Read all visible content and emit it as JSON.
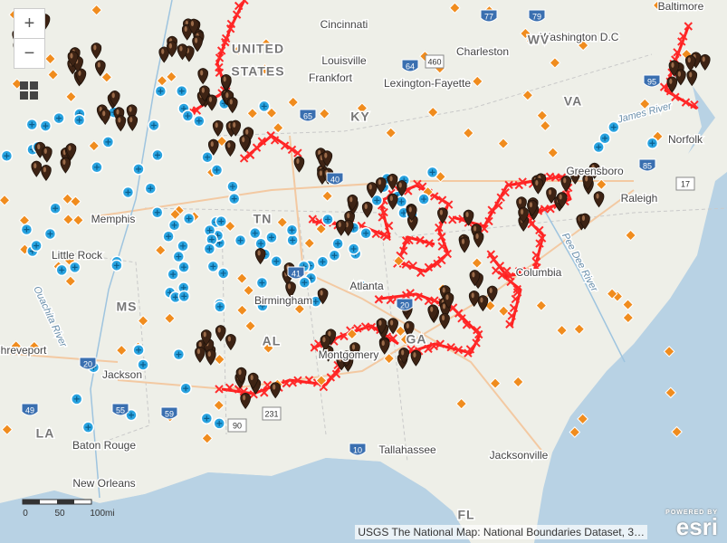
{
  "map": {
    "zoom_in": "+",
    "zoom_out": "−",
    "labels": [
      "Baltimore",
      "Washington D.C",
      "WV",
      "Cincinnati",
      "Charleston",
      "Louisville",
      "Frankfort",
      "Lexington-Fayette",
      "KY",
      "VA",
      "James River",
      "Norfolk",
      "Greensboro",
      "Raleigh",
      "TN",
      "Memphis",
      "Little Rock",
      "MS",
      "Birmingham",
      "Atlanta",
      "AL",
      "GA",
      "Columbia",
      "Jackson",
      "Montgomery",
      "Shreveport",
      "LA",
      "Baton Rouge",
      "New Orleans",
      "Tallahassee",
      "Jacksonville",
      "FL",
      "UNITED",
      "STATES",
      "Ouachita River",
      "Pee Dee River"
    ],
    "shields": [
      "77",
      "79",
      "64",
      "460",
      "65",
      "40",
      "85",
      "17",
      "20",
      "59",
      "55",
      "49",
      "10",
      "90",
      "231",
      "20",
      "41",
      "95"
    ],
    "scale": [
      "0",
      "50",
      "100mi"
    ],
    "attribution": "USGS The National Map: National Boundaries Dataset, 3…",
    "logo": {
      "powered_by": "POWERED BY",
      "brand": "esri"
    }
  }
}
